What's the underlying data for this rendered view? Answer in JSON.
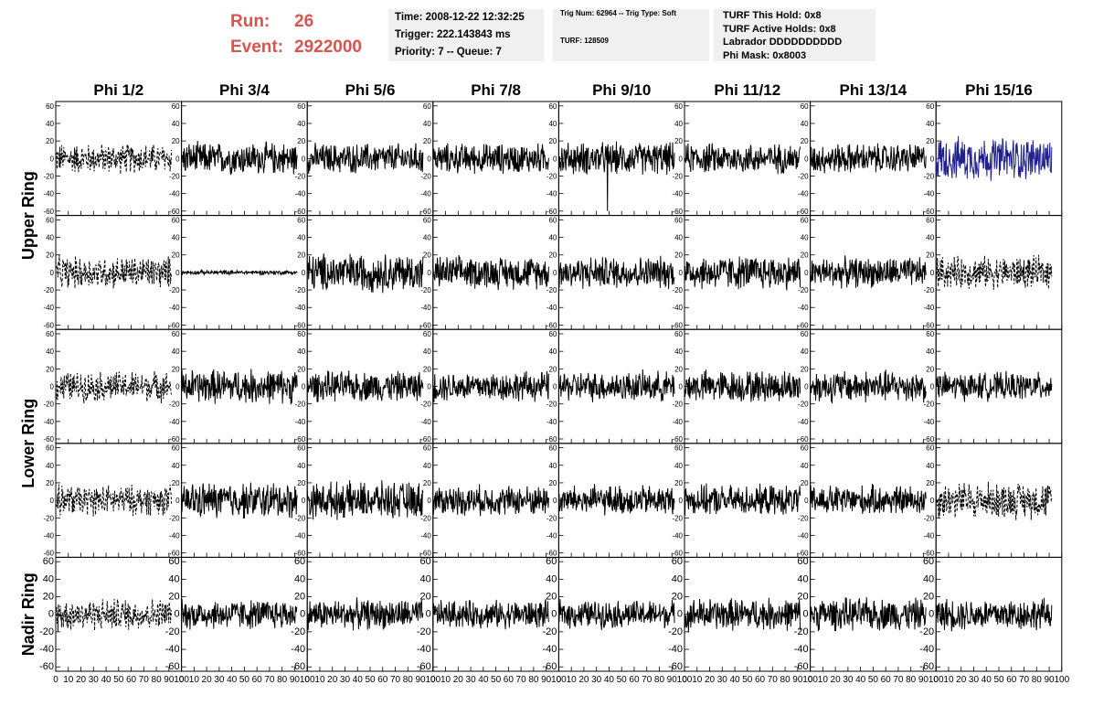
{
  "header": {
    "run_label": "Run:",
    "run_value": "26",
    "event_label": "Event:",
    "event_value": "2922000"
  },
  "info_time": {
    "time": "Time: 2008-12-22 12:32:25",
    "trigger": "Trigger: 222.143843 ms",
    "priority": "Priority: 7 -- Queue: 7"
  },
  "info_trig": {
    "trig": "Trig Num: 62964 -- Trig Type: Soft",
    "turf": "TURF: 128509"
  },
  "info_turf": {
    "hold": "TURF This Hold: 0x8",
    "active": "TURF Active Holds: 0x8",
    "labrador": "Labrador DDDDDDDDDD",
    "phimask": "Phi Mask: 0x8003"
  },
  "colors": {
    "trace": "#000000",
    "highlight": "#1f1f8f",
    "runtext": "#d9534f",
    "infobox": "#f0f0f0"
  },
  "chart_data": {
    "type": "line",
    "columns": [
      "Phi 1/2",
      "Phi 3/4",
      "Phi 5/6",
      "Phi 7/8",
      "Phi 9/10",
      "Phi 11/12",
      "Phi 13/14",
      "Phi 15/16"
    ],
    "row_labels": [
      {
        "text": "Upper Ring",
        "rows": [
          0,
          1
        ]
      },
      {
        "text": "Lower Ring",
        "rows": [
          2,
          3
        ]
      },
      {
        "text": "Nadir Ring",
        "rows": [
          4
        ]
      }
    ],
    "xlim": [
      0,
      100
    ],
    "ylim": [
      -65,
      65
    ],
    "x_ticks": [
      "0",
      "10",
      "20",
      "30",
      "40",
      "50",
      "60",
      "70",
      "80",
      "90",
      "100"
    ],
    "y_ticks": [
      "60",
      "40",
      "20",
      "0",
      "-20",
      "-40",
      "-60"
    ],
    "panels": [
      [
        {
          "amp": 14,
          "style": "dashed"
        },
        {
          "amp": 15,
          "style": "solid"
        },
        {
          "amp": 14,
          "style": "solid"
        },
        {
          "amp": 14,
          "style": "solid"
        },
        {
          "amp": 15,
          "style": "solid",
          "spike": -60
        },
        {
          "amp": 14,
          "style": "solid"
        },
        {
          "amp": 14,
          "style": "solid"
        },
        {
          "amp": 20,
          "style": "highlight"
        }
      ],
      [
        {
          "amp": 15,
          "style": "dashed"
        },
        {
          "amp": 2,
          "style": "solid"
        },
        {
          "amp": 18,
          "style": "solid"
        },
        {
          "amp": 15,
          "style": "solid"
        },
        {
          "amp": 15,
          "style": "solid"
        },
        {
          "amp": 16,
          "style": "solid"
        },
        {
          "amp": 14,
          "style": "solid"
        },
        {
          "amp": 15,
          "style": "dashed"
        }
      ],
      [
        {
          "amp": 14,
          "style": "dashed"
        },
        {
          "amp": 16,
          "style": "solid"
        },
        {
          "amp": 14,
          "style": "solid"
        },
        {
          "amp": 14,
          "style": "solid"
        },
        {
          "amp": 14,
          "style": "solid"
        },
        {
          "amp": 15,
          "style": "solid"
        },
        {
          "amp": 15,
          "style": "solid"
        },
        {
          "amp": 13,
          "style": "solid"
        }
      ],
      [
        {
          "amp": 14,
          "style": "dashed"
        },
        {
          "amp": 17,
          "style": "solid"
        },
        {
          "amp": 17,
          "style": "solid"
        },
        {
          "amp": 14,
          "style": "solid"
        },
        {
          "amp": 14,
          "style": "solid"
        },
        {
          "amp": 14,
          "style": "solid"
        },
        {
          "amp": 14,
          "style": "solid"
        },
        {
          "amp": 17,
          "style": "dashed"
        }
      ],
      [
        {
          "amp": 15,
          "style": "dashed"
        },
        {
          "amp": 14,
          "style": "solid"
        },
        {
          "amp": 14,
          "style": "solid"
        },
        {
          "amp": 13,
          "style": "solid"
        },
        {
          "amp": 13,
          "style": "solid"
        },
        {
          "amp": 15,
          "style": "solid"
        },
        {
          "amp": 15,
          "style": "solid"
        },
        {
          "amp": 15,
          "style": "solid"
        }
      ]
    ]
  }
}
